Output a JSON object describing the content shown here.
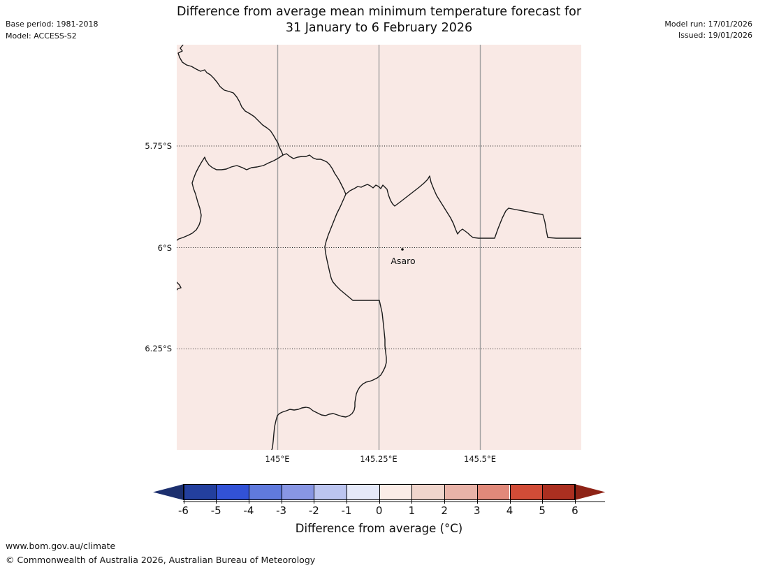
{
  "header": {
    "title_line1": "Difference from average mean minimum temperature forecast for",
    "title_line2": "31 January to 6 February 2026",
    "base_period": "Base period: 1981-2018",
    "model": "Model: ACCESS-S2",
    "model_run": "Model run: 17/01/2026",
    "issued": "Issued: 19/01/2026"
  },
  "map": {
    "background_color": "#f9e9e5",
    "border_line_color": "#1a1a1a",
    "gridline_color": "#a0a0a0",
    "place_label": "Asaro",
    "y_axis_ticks": [
      "5.75°S",
      "6°S",
      "6.25°S"
    ],
    "x_axis_ticks": [
      "145°E",
      "145.25°E",
      "145.5°E"
    ]
  },
  "colorbar": {
    "label": "Difference from average (°C)",
    "tick_labels": [
      "-6",
      "-5",
      "-4",
      "-3",
      "-2",
      "-1",
      "0",
      "1",
      "2",
      "3",
      "4",
      "5",
      "6"
    ],
    "segment_colors": [
      "#233f9e",
      "#3252d6",
      "#607add",
      "#8896e4",
      "#bcc5f0",
      "#e5e9f9",
      "#fbece7",
      "#f0d5cc",
      "#e9b3a8",
      "#e1897a",
      "#d14c37",
      "#ab2f20"
    ],
    "left_arrow_color": "#1c2f6e",
    "right_arrow_color": "#8e2316"
  },
  "footer": {
    "url": "www.bom.gov.au/climate",
    "copyright": "© Commonwealth of Australia 2026, Australian Bureau of Meteorology"
  }
}
